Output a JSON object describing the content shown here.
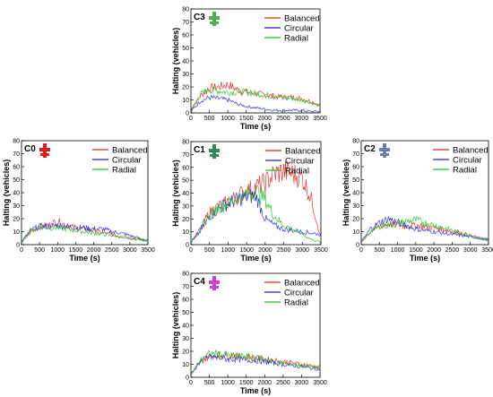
{
  "chart_data": [
    {
      "type": "line",
      "tag": "C3",
      "icon": "C3 intersection icon",
      "icon_color": "#4caf50",
      "xlabel": "Time (s)",
      "ylabel": "Halting (vehicles)",
      "xlim": [
        0,
        3500
      ],
      "ylim": [
        0,
        80
      ],
      "xticks": [
        "0",
        "500",
        "1000",
        "1500",
        "2000",
        "2500",
        "3000",
        "3500"
      ],
      "yticks": [
        "0",
        "10",
        "20",
        "30",
        "40",
        "50",
        "60",
        "70",
        "80"
      ],
      "legend": [
        "Balanced",
        "Circular",
        "Radial"
      ],
      "x": [
        0,
        250,
        500,
        750,
        1000,
        1250,
        1500,
        1750,
        2000,
        2250,
        2500,
        2750,
        3000,
        3250,
        3500
      ],
      "series": [
        {
          "name": "Balanced",
          "color": "#e02020",
          "values": [
            2,
            13,
            19,
            20,
            22,
            18,
            16,
            15,
            14,
            13,
            12,
            12,
            11,
            9,
            6
          ]
        },
        {
          "name": "Circular",
          "color": "#2020e0",
          "values": [
            1,
            9,
            12,
            11,
            10,
            7,
            5,
            4,
            3,
            2,
            2,
            2,
            2,
            1,
            1
          ]
        },
        {
          "name": "Radial",
          "color": "#20c020",
          "values": [
            2,
            14,
            18,
            17,
            16,
            16,
            16,
            15,
            14,
            13,
            12,
            11,
            10,
            8,
            5
          ]
        }
      ]
    },
    {
      "type": "line",
      "tag": "C0",
      "icon": "C0 intersection icon",
      "icon_color": "#e02020",
      "xlabel": "Time (s)",
      "ylabel": "Halting (vehicles)",
      "xlim": [
        0,
        3500
      ],
      "ylim": [
        0,
        80
      ],
      "xticks": [
        "0",
        "500",
        "1000",
        "1500",
        "2000",
        "2500",
        "3000",
        "3500"
      ],
      "yticks": [
        "0",
        "10",
        "20",
        "30",
        "40",
        "50",
        "60",
        "70",
        "80"
      ],
      "legend": [
        "Balanced",
        "Circular",
        "Radial"
      ],
      "x": [
        0,
        250,
        500,
        750,
        1000,
        1250,
        1500,
        1750,
        2000,
        2250,
        2500,
        2750,
        3000,
        3250,
        3500
      ],
      "series": [
        {
          "name": "Balanced",
          "color": "#e02020",
          "values": [
            2,
            10,
            14,
            15,
            18,
            15,
            13,
            12,
            11,
            9,
            8,
            6,
            5,
            4,
            3
          ]
        },
        {
          "name": "Circular",
          "color": "#2020e0",
          "values": [
            2,
            11,
            14,
            14,
            15,
            14,
            13,
            13,
            12,
            12,
            10,
            9,
            7,
            5,
            3
          ]
        },
        {
          "name": "Radial",
          "color": "#20c020",
          "values": [
            2,
            10,
            14,
            13,
            13,
            12,
            11,
            10,
            9,
            8,
            7,
            6,
            5,
            4,
            3
          ]
        }
      ]
    },
    {
      "type": "line",
      "tag": "C1",
      "icon": "C1 intersection icon",
      "icon_color": "#2e8b57",
      "xlabel": "Time (s)",
      "ylabel": "Halting (vehicles)",
      "xlim": [
        0,
        3500
      ],
      "ylim": [
        0,
        80
      ],
      "xticks": [
        "0",
        "500",
        "1000",
        "1500",
        "2000",
        "2500",
        "3000",
        "3500"
      ],
      "yticks": [
        "0",
        "10",
        "20",
        "30",
        "40",
        "50",
        "60",
        "70",
        "80"
      ],
      "legend": [
        "Balanced",
        "Circular",
        "Radial"
      ],
      "x": [
        0,
        250,
        500,
        750,
        1000,
        1250,
        1500,
        1750,
        2000,
        2250,
        2500,
        2750,
        3000,
        3250,
        3500
      ],
      "series": [
        {
          "name": "Balanced",
          "color": "#e02020",
          "values": [
            2,
            12,
            25,
            30,
            33,
            38,
            42,
            45,
            48,
            55,
            57,
            55,
            52,
            35,
            5
          ]
        },
        {
          "name": "Circular",
          "color": "#2020e0",
          "values": [
            2,
            10,
            22,
            28,
            32,
            35,
            37,
            38,
            20,
            15,
            12,
            11,
            10,
            9,
            8
          ]
        },
        {
          "name": "Radial",
          "color": "#20c020",
          "values": [
            2,
            11,
            23,
            29,
            32,
            36,
            39,
            42,
            35,
            22,
            15,
            12,
            8,
            4,
            2
          ]
        }
      ]
    },
    {
      "type": "line",
      "tag": "C2",
      "icon": "C2 intersection icon",
      "icon_color": "#6a7fb0",
      "xlabel": "Time (s)",
      "ylabel": "Halting (vehicles)",
      "xlim": [
        0,
        3500
      ],
      "ylim": [
        0,
        80
      ],
      "xticks": [
        "0",
        "500",
        "1000",
        "1500",
        "2000",
        "2500",
        "3000",
        "3500"
      ],
      "yticks": [
        "0",
        "10",
        "20",
        "30",
        "40",
        "50",
        "60",
        "70",
        "80"
      ],
      "legend": [
        "Balanced",
        "Circular",
        "Radial"
      ],
      "x": [
        0,
        250,
        500,
        750,
        1000,
        1250,
        1500,
        1750,
        2000,
        2250,
        2500,
        2750,
        3000,
        3250,
        3500
      ],
      "series": [
        {
          "name": "Balanced",
          "color": "#e02020",
          "values": [
            2,
            10,
            14,
            16,
            15,
            14,
            15,
            14,
            13,
            12,
            10,
            9,
            7,
            5,
            3
          ]
        },
        {
          "name": "Circular",
          "color": "#2020e0",
          "values": [
            2,
            12,
            17,
            20,
            17,
            15,
            12,
            11,
            10,
            9,
            8,
            7,
            6,
            5,
            4
          ]
        },
        {
          "name": "Radial",
          "color": "#20c020",
          "values": [
            2,
            10,
            14,
            15,
            16,
            18,
            19,
            17,
            15,
            13,
            11,
            9,
            7,
            5,
            3
          ]
        }
      ]
    },
    {
      "type": "line",
      "tag": "C4",
      "icon": "C4 intersection icon",
      "icon_color": "#d040d0",
      "xlabel": "Time (s)",
      "ylabel": "Halting (vehicles)",
      "xlim": [
        0,
        3500
      ],
      "ylim": [
        0,
        80
      ],
      "xticks": [
        "0",
        "500",
        "1000",
        "1500",
        "2000",
        "2500",
        "3000",
        "3500"
      ],
      "yticks": [
        "0",
        "10",
        "20",
        "30",
        "40",
        "50",
        "60",
        "70",
        "80"
      ],
      "legend": [
        "Balanced",
        "Circular",
        "Radial"
      ],
      "x": [
        0,
        250,
        500,
        750,
        1000,
        1250,
        1500,
        1750,
        2000,
        2250,
        2500,
        2750,
        3000,
        3250,
        3500
      ],
      "series": [
        {
          "name": "Balanced",
          "color": "#e02020",
          "values": [
            2,
            12,
            16,
            17,
            17,
            16,
            16,
            15,
            14,
            13,
            12,
            11,
            10,
            9,
            8
          ]
        },
        {
          "name": "Circular",
          "color": "#2020e0",
          "values": [
            2,
            12,
            16,
            15,
            14,
            14,
            13,
            13,
            12,
            11,
            10,
            9,
            8,
            7,
            6
          ]
        },
        {
          "name": "Radial",
          "color": "#20c020",
          "values": [
            2,
            13,
            18,
            18,
            17,
            16,
            16,
            15,
            14,
            12,
            11,
            10,
            9,
            8,
            7
          ]
        }
      ]
    }
  ]
}
